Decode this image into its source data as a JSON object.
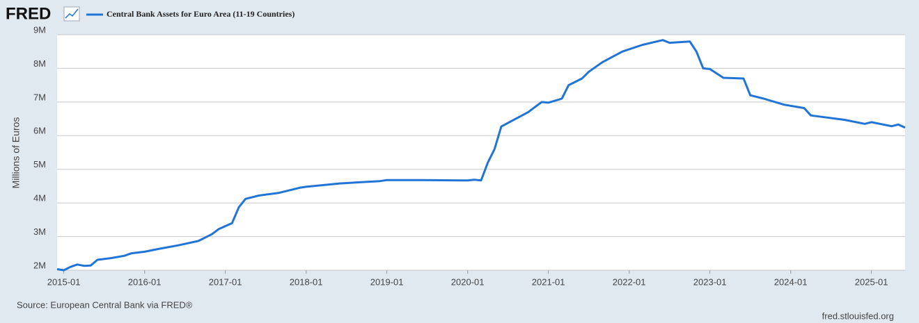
{
  "chart_data": {
    "type": "line",
    "brand": "FRED",
    "ylabel": "Millions of Euros",
    "source": "Source: European Central Bank via FRED®",
    "site": "fred.stlouisfed.org",
    "grid": true,
    "legend": "top-left",
    "x": [
      "2014-12",
      "2015-01",
      "2015-02",
      "2015-03",
      "2015-04",
      "2015-05",
      "2015-06",
      "2015-08",
      "2015-10",
      "2015-11",
      "2016-01",
      "2016-03",
      "2016-06",
      "2016-09",
      "2016-11",
      "2016-12",
      "2017-02",
      "2017-03",
      "2017-04",
      "2017-06",
      "2017-09",
      "2017-12",
      "2018-01",
      "2018-06",
      "2018-12",
      "2019-01",
      "2019-06",
      "2019-12",
      "2020-01",
      "2020-02",
      "2020-03",
      "2020-04",
      "2020-05",
      "2020-06",
      "2020-07",
      "2020-10",
      "2020-12",
      "2021-01",
      "2021-03",
      "2021-04",
      "2021-06",
      "2021-07",
      "2021-09",
      "2021-12",
      "2022-03",
      "2022-06",
      "2022-07",
      "2022-10",
      "2022-11",
      "2022-12",
      "2023-01",
      "2023-03",
      "2023-06",
      "2023-07",
      "2023-09",
      "2023-12",
      "2024-03",
      "2024-04",
      "2024-09",
      "2024-12",
      "2025-01",
      "2025-04",
      "2025-05",
      "2025-06"
    ],
    "series": [
      {
        "name": "Central Bank Assets for Euro Area (11-19 Countries)",
        "color": "#1f74d6",
        "values": [
          2030000,
          2000000,
          2100000,
          2170000,
          2130000,
          2140000,
          2310000,
          2360000,
          2430000,
          2500000,
          2550000,
          2630000,
          2740000,
          2870000,
          3070000,
          3220000,
          3400000,
          3870000,
          4120000,
          4220000,
          4300000,
          4450000,
          4480000,
          4580000,
          4650000,
          4680000,
          4680000,
          4670000,
          4670000,
          4690000,
          4670000,
          5200000,
          5600000,
          6270000,
          6380000,
          6700000,
          7000000,
          6980000,
          7100000,
          7500000,
          7700000,
          7900000,
          8180000,
          8500000,
          8700000,
          8840000,
          8760000,
          8800000,
          8500000,
          8000000,
          7980000,
          7720000,
          7700000,
          7200000,
          7100000,
          6920000,
          6820000,
          6600000,
          6470000,
          6350000,
          6400000,
          6280000,
          6330000,
          6240000
        ]
      }
    ],
    "xlim": [
      "2014-12",
      "2025-06"
    ],
    "xticks": [
      "2015-01",
      "2016-01",
      "2017-01",
      "2018-01",
      "2019-01",
      "2020-01",
      "2021-01",
      "2022-01",
      "2023-01",
      "2024-01",
      "2025-01"
    ],
    "ylim": [
      2000000,
      9000000
    ],
    "yticks": [
      {
        "value": 2000000,
        "label": "2M"
      },
      {
        "value": 3000000,
        "label": "3M"
      },
      {
        "value": 4000000,
        "label": "4M"
      },
      {
        "value": 5000000,
        "label": "5M"
      },
      {
        "value": 6000000,
        "label": "6M"
      },
      {
        "value": 7000000,
        "label": "7M"
      },
      {
        "value": 8000000,
        "label": "8M"
      },
      {
        "value": 9000000,
        "label": "9M"
      }
    ]
  }
}
